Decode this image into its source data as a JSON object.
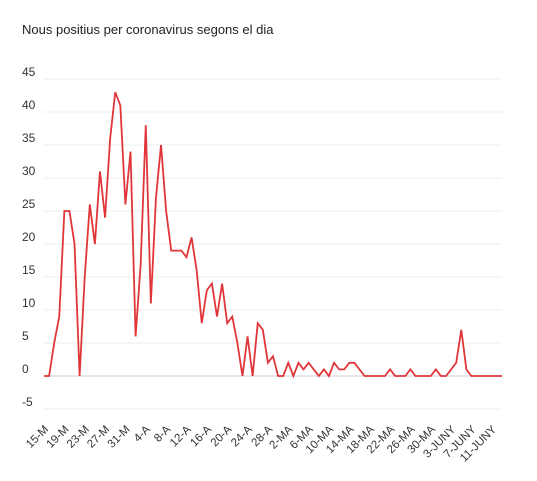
{
  "chart_data": {
    "type": "line",
    "title": "Nous positius per coronavirus segons el dia",
    "xlabel": "",
    "ylabel": "",
    "ylim": [
      -5,
      45
    ],
    "yticks": [
      45,
      40,
      35,
      30,
      25,
      20,
      15,
      10,
      5,
      0,
      -5
    ],
    "grid": true,
    "legend": "none",
    "x_tick_labels": [
      "15-M",
      "19-M",
      "23-M",
      "27-M",
      "31-M",
      "4-A",
      "8-A",
      "12-A",
      "16-A",
      "20-A",
      "24-A",
      "28-A",
      "2-MA",
      "6-MA",
      "10-MA",
      "14-MA",
      "18-MA",
      "22-MA",
      "26-MA",
      "30-MA",
      "3-JUNY",
      "7-JUNY",
      "11-JUNY"
    ],
    "series": [
      {
        "color": "#e0363a",
        "values": [
          0,
          0,
          5,
          9,
          25,
          25,
          20,
          0,
          15,
          26,
          20,
          31,
          24,
          36,
          43,
          41,
          26,
          34,
          6,
          17,
          38,
          11,
          27,
          35,
          25,
          19,
          19,
          19,
          18,
          21,
          16,
          8,
          13,
          14,
          9,
          14,
          8,
          9,
          5,
          0,
          6,
          0,
          8,
          7,
          2,
          3,
          0,
          0,
          2,
          0,
          2,
          1,
          2,
          1,
          0,
          1,
          0,
          2,
          1,
          1,
          2,
          2,
          1,
          0,
          0,
          0,
          0,
          0,
          1,
          0,
          0,
          0,
          1,
          0,
          0,
          0,
          0,
          1,
          0,
          0,
          1,
          2,
          7,
          1,
          0,
          0,
          0,
          0,
          0,
          0,
          0
        ]
      }
    ]
  }
}
